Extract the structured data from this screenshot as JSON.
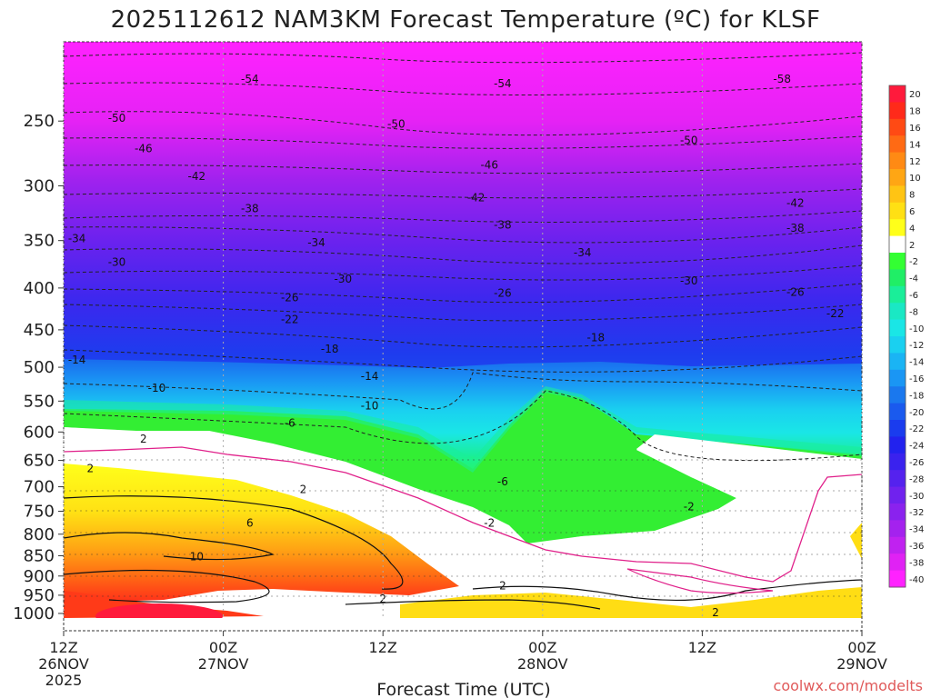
{
  "chart_data": {
    "type": "heatmap",
    "title": "2025112612 NAM3KM Forecast Temperature (ºC) for KLSF",
    "xlabel": "Forecast Time (UTC)",
    "ylabel": "",
    "credit": "coolwx.com/modelts",
    "x_ticks": [
      {
        "hour": 0,
        "lines": [
          "12Z",
          "26NOV",
          "2025"
        ]
      },
      {
        "hour": 12,
        "lines": [
          "00Z",
          "27NOV"
        ]
      },
      {
        "hour": 24,
        "lines": [
          "12Z",
          ""
        ]
      },
      {
        "hour": 36,
        "lines": [
          "00Z",
          "28NOV"
        ]
      },
      {
        "hour": 48,
        "lines": [
          "12Z",
          ""
        ]
      },
      {
        "hour": 60,
        "lines": [
          "00Z",
          "29NOV"
        ]
      }
    ],
    "xlim": [
      0,
      60
    ],
    "y_ticks": [
      250,
      300,
      350,
      400,
      450,
      500,
      550,
      600,
      650,
      700,
      750,
      800,
      850,
      900,
      950,
      1000
    ],
    "ylim": [
      200,
      1013
    ],
    "y_scale": "log-pressure",
    "colorbar": {
      "ticks": [
        20,
        18,
        16,
        14,
        12,
        10,
        8,
        6,
        4,
        2,
        -2,
        -4,
        -6,
        -8,
        -10,
        -12,
        -14,
        -16,
        -18,
        -20,
        -22,
        -24,
        -26,
        -28,
        -30,
        -32,
        -34,
        -36,
        -38,
        -40
      ],
      "colors": [
        "#ff1a3c",
        "#ff2a1a",
        "#ff4a14",
        "#ff6a14",
        "#ff8a14",
        "#ffa614",
        "#ffc414",
        "#ffe014",
        "#ffff1a",
        "#ffffff",
        "#33ff33",
        "#20ee66",
        "#1aee99",
        "#1ae8c4",
        "#1ae6e6",
        "#1ad0f0",
        "#1ab4f4",
        "#1a96f4",
        "#1a78ee",
        "#1a5aee",
        "#1a3cee",
        "#2222ee",
        "#3a22ee",
        "#5522ee",
        "#7022ee",
        "#8a22ee",
        "#a422ee",
        "#c022f0",
        "#e022f4",
        "#ff22ff"
      ]
    },
    "contour_labels": [
      {
        "t": 14,
        "p": 222,
        "text": "-54"
      },
      {
        "t": 33,
        "p": 225,
        "text": "-54"
      },
      {
        "t": 54,
        "p": 222,
        "text": "-58"
      },
      {
        "t": 4,
        "p": 248,
        "text": "-50"
      },
      {
        "t": 25,
        "p": 252,
        "text": "-50"
      },
      {
        "t": 47,
        "p": 264,
        "text": "-50"
      },
      {
        "t": 6,
        "p": 270,
        "text": "-46"
      },
      {
        "t": 32,
        "p": 283,
        "text": "-46"
      },
      {
        "t": 10,
        "p": 292,
        "text": "-42"
      },
      {
        "t": 31,
        "p": 310,
        "text": "-42"
      },
      {
        "t": 55,
        "p": 315,
        "text": "-42"
      },
      {
        "t": 14,
        "p": 320,
        "text": "-38"
      },
      {
        "t": 33,
        "p": 335,
        "text": "-38"
      },
      {
        "t": 55,
        "p": 338,
        "text": "-38"
      },
      {
        "t": 1,
        "p": 348,
        "text": "-34"
      },
      {
        "t": 19,
        "p": 352,
        "text": "-34"
      },
      {
        "t": 39,
        "p": 362,
        "text": "-34"
      },
      {
        "t": 4,
        "p": 372,
        "text": "-30"
      },
      {
        "t": 21,
        "p": 390,
        "text": "-30"
      },
      {
        "t": 47,
        "p": 392,
        "text": "-30"
      },
      {
        "t": 17,
        "p": 411,
        "text": "-26"
      },
      {
        "t": 33,
        "p": 406,
        "text": "-26"
      },
      {
        "t": 55,
        "p": 405,
        "text": "-26"
      },
      {
        "t": 17,
        "p": 437,
        "text": "-22"
      },
      {
        "t": 58,
        "p": 430,
        "text": "-22"
      },
      {
        "t": 20,
        "p": 475,
        "text": "-18"
      },
      {
        "t": 40,
        "p": 460,
        "text": "-18"
      },
      {
        "t": 1,
        "p": 490,
        "text": "-14"
      },
      {
        "t": 23,
        "p": 513,
        "text": "-14"
      },
      {
        "t": 7,
        "p": 530,
        "text": "-10"
      },
      {
        "t": 23,
        "p": 557,
        "text": "-10"
      },
      {
        "t": 17,
        "p": 585,
        "text": "-6"
      },
      {
        "t": 33,
        "p": 690,
        "text": "-6"
      },
      {
        "t": 6,
        "p": 612,
        "text": "2"
      },
      {
        "t": 2,
        "p": 665,
        "text": "2"
      },
      {
        "t": 18,
        "p": 705,
        "text": "2"
      },
      {
        "t": 14,
        "p": 775,
        "text": "6"
      },
      {
        "t": 10,
        "p": 852,
        "text": "10"
      },
      {
        "t": 32,
        "p": 775,
        "text": "-2"
      },
      {
        "t": 47,
        "p": 740,
        "text": "-2"
      },
      {
        "t": 33,
        "p": 925,
        "text": "2"
      },
      {
        "t": 24,
        "p": 960,
        "text": "2"
      },
      {
        "t": 49,
        "p": 997,
        "text": "2"
      }
    ]
  }
}
